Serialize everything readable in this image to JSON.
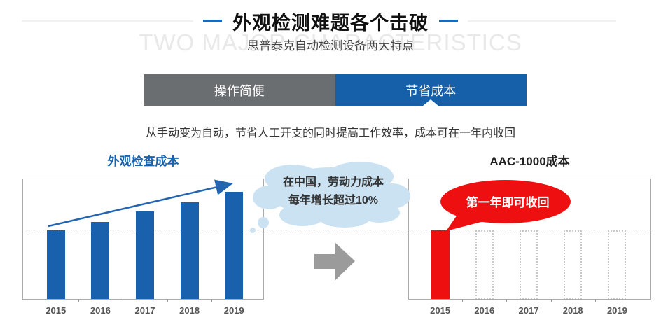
{
  "header": {
    "title": "外观检测难题各个击破",
    "subtitle": "思普泰克自动检测设备两大特点",
    "watermark": "TWO MAJOR CHARACTERISTICS"
  },
  "tabs": [
    {
      "id": "tab-easy-operation",
      "label": "操作简便",
      "active": false
    },
    {
      "id": "tab-cost-saving",
      "label": "节省成本",
      "active": true
    }
  ],
  "description": "从手动变为自动，节省人工开支的同时提高工作效率，成本可在一年内收回",
  "colors": {
    "accent": "#1a6ab5",
    "tab_active": "#1560a8",
    "tab_inactive": "#6b6e71",
    "bar_blue": "#1961ac",
    "bar_red": "#ee1010",
    "cloud_fill": "#cbe2f2",
    "transfer_arrow_gray": "#9b9b9b"
  },
  "chart_data": [
    {
      "type": "bar",
      "title": "外观检查成本",
      "categories": [
        "2015",
        "2016",
        "2017",
        "2018",
        "2019"
      ],
      "values": [
        100,
        113,
        128,
        141,
        157
      ],
      "ylim": [
        0,
        176
      ],
      "bar_color": "#1961ac",
      "grid": false,
      "baseline": {
        "value": 100,
        "style": "dashed"
      },
      "trend_arrow": "rising",
      "annotation": {
        "shape": "thought-cloud",
        "line1": "在中国，劳动力成本",
        "line2": "每年增长超过10%"
      }
    },
    {
      "type": "bar",
      "title": "AAC-1000成本",
      "categories": [
        "2015",
        "2016",
        "2017",
        "2018",
        "2019"
      ],
      "values": [
        100,
        100,
        100,
        100,
        100
      ],
      "solid": [
        true,
        false,
        false,
        false,
        false
      ],
      "ylim": [
        0,
        176
      ],
      "bar_color": "#ee1010",
      "grid": false,
      "baseline": {
        "value": 100,
        "style": "dashed"
      },
      "callout": {
        "shape": "speech-ellipse",
        "text": "第一年即可收回"
      }
    }
  ]
}
